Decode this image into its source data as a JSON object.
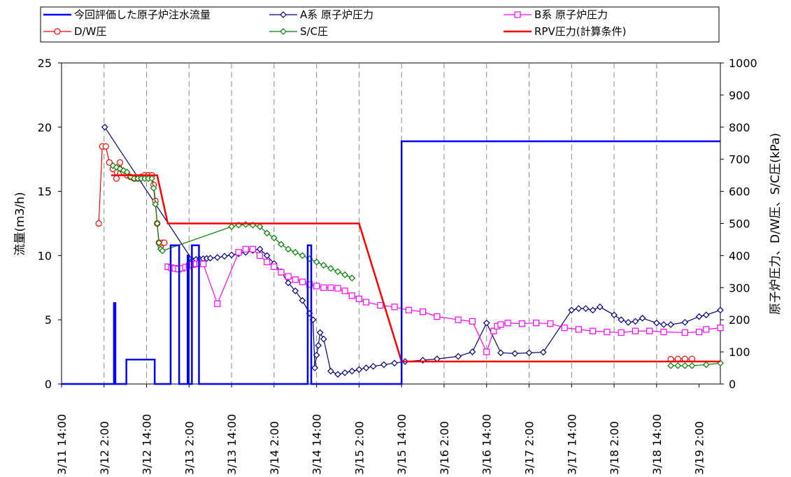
{
  "chart_data": {
    "type": "line",
    "title": "",
    "ylabel_left": "流量(m3/h)",
    "ylabel_right": "原子炉圧力、D/W圧、S/C圧(kPa)",
    "ylim_left": [
      0,
      25
    ],
    "ylim_right": [
      0,
      1000
    ],
    "yticks_left": [
      0,
      5,
      10,
      15,
      20,
      25
    ],
    "yticks_right": [
      0,
      100,
      200,
      300,
      400,
      500,
      600,
      700,
      800,
      900,
      1000
    ],
    "x_unit": "hours",
    "x_tick_labels": [
      "3/11 14:00",
      "3/12 2:00",
      "3/12 14:00",
      "3/13 2:00",
      "3/13 14:00",
      "3/14 2:00",
      "3/14 14:00",
      "3/15 2:00",
      "3/15 14:00",
      "3/16 2:00",
      "3/16 14:00",
      "3/17 2:00",
      "3/17 14:00",
      "3/18 2:00",
      "3/18 14:00",
      "3/19 2:00"
    ],
    "grid": true,
    "legend_position": "top",
    "series": [
      {
        "name": "今回評価した原子炉注水流量",
        "axis": "left",
        "color": "#0000ff",
        "marker": "none",
        "x": [
          0,
          14.8,
          14.8,
          15.2,
          15.2,
          18.3,
          18.3,
          26.3,
          26.3,
          30.8,
          30.8,
          33.2,
          33.2,
          35.6,
          35.6,
          35.9,
          35.9,
          36.8,
          36.8,
          38.8,
          38.8,
          69.5,
          69.5,
          70.5,
          70.5,
          91.2,
          91.2,
          96,
          96,
          186
        ],
        "y": [
          0,
          0,
          6.3,
          6.3,
          0,
          0,
          1.9,
          1.9,
          0,
          0,
          10.8,
          10.8,
          0,
          0,
          10,
          10,
          0,
          0,
          10.8,
          10.8,
          0,
          0,
          10.8,
          10.8,
          0,
          0,
          0,
          0,
          18.9,
          18.9
        ]
      },
      {
        "name": "A系 原子炉圧力",
        "axis": "right",
        "color": "#000080",
        "marker": "diamond-open",
        "x": [
          12.2,
          37,
          38,
          39,
          40,
          41,
          42,
          44,
          46,
          48,
          50,
          52,
          54,
          56,
          58,
          60,
          62,
          64,
          66,
          68,
          70,
          71,
          71.5,
          72,
          72.5,
          73,
          74,
          76,
          78,
          80,
          82,
          84,
          86,
          88,
          91,
          94,
          97,
          102,
          106,
          112,
          116,
          120,
          124,
          128,
          132,
          136,
          144,
          146,
          148,
          150,
          152,
          156,
          158,
          160,
          162,
          164,
          168,
          170,
          172,
          176,
          180,
          182,
          186
        ],
        "y": [
          800,
          385,
          388,
          389,
          390,
          391,
          392,
          394,
          398,
          402,
          406,
          410,
          416,
          420,
          400,
          375,
          350,
          315,
          290,
          260,
          220,
          200,
          50,
          90,
          120,
          160,
          140,
          40,
          30,
          35,
          40,
          45,
          50,
          55,
          60,
          65,
          70,
          74,
          78,
          86,
          100,
          190,
          97,
          95,
          97,
          99,
          230,
          235,
          235,
          230,
          240,
          215,
          200,
          192,
          195,
          205,
          190,
          185,
          185,
          192,
          210,
          215,
          230
        ]
      },
      {
        "name": "B系 原子炉圧力",
        "axis": "right",
        "color": "#ff00ff",
        "marker": "square-open",
        "x": [
          30,
          31,
          32,
          33,
          34,
          35,
          36,
          37,
          38,
          39,
          40,
          44,
          50,
          52,
          54,
          56,
          58,
          60,
          62,
          64,
          66,
          68,
          70,
          72,
          74,
          76,
          78,
          80,
          82,
          84,
          86,
          90,
          94,
          98,
          102,
          106,
          112,
          116,
          120,
          122,
          123,
          124,
          126,
          130,
          134,
          138,
          142,
          146,
          150,
          154,
          158,
          162,
          166,
          170,
          176,
          180,
          182,
          186
        ],
        "y": [
          365,
          362,
          360,
          358,
          360,
          364,
          368,
          372,
          374,
          375,
          374,
          250,
          410,
          420,
          420,
          400,
          380,
          365,
          348,
          335,
          325,
          318,
          310,
          305,
          300,
          300,
          298,
          290,
          275,
          265,
          255,
          245,
          240,
          230,
          225,
          210,
          200,
          195,
          100,
          165,
          180,
          185,
          190,
          188,
          190,
          188,
          175,
          170,
          165,
          162,
          160,
          165,
          165,
          162,
          160,
          162,
          170,
          175
        ]
      },
      {
        "name": "D/W圧",
        "axis": "right",
        "color": "#ff0000",
        "marker": "circle-open",
        "x": [
          10.5,
          11.5,
          12.5,
          13.5,
          14.5,
          15.5,
          16.5,
          17.5,
          18.5,
          19.5,
          20.5,
          21.5,
          22.5,
          23.5,
          24.5,
          25.5,
          26,
          26.5,
          27,
          27.5,
          28,
          28.5,
          29
        ],
        "y": [
          500,
          740,
          740,
          690,
          670,
          640,
          690,
          660,
          650,
          645,
          640,
          640,
          645,
          650,
          650,
          650,
          620,
          570,
          500,
          440,
          430,
          440,
          440
        ],
        "x2": [
          172,
          174,
          176,
          178
        ],
        "y2": [
          77,
          78,
          78,
          78
        ]
      },
      {
        "name": "S/C圧",
        "axis": "right",
        "color": "#008000",
        "marker": "diamond-open",
        "x": [
          14.5,
          15.5,
          16.5,
          17.5,
          18.5,
          19.5,
          20.5,
          21.5,
          22.5,
          23.5,
          24.5,
          25.5,
          26,
          26.5,
          27,
          27.5,
          28,
          28.5,
          48,
          50,
          52,
          54,
          56,
          58,
          60,
          62,
          64,
          66,
          68,
          70,
          72,
          74,
          76,
          78,
          80,
          82
        ],
        "y": [
          680,
          675,
          670,
          665,
          660,
          645,
          640,
          640,
          640,
          640,
          640,
          640,
          610,
          560,
          500,
          440,
          420,
          415,
          490,
          495,
          497,
          495,
          490,
          470,
          455,
          435,
          420,
          410,
          400,
          390,
          380,
          370,
          360,
          350,
          340,
          330
        ],
        "x2": [
          172,
          174,
          176,
          178,
          182,
          186
        ],
        "y2": [
          57,
          57,
          57,
          57,
          60,
          65
        ]
      },
      {
        "name": "RPV圧力(計算条件)",
        "axis": "right",
        "color": "#ff0000",
        "marker": "none",
        "x": [
          14,
          25,
          27,
          30,
          48,
          58,
          60,
          70,
          72,
          82,
          84,
          96,
          98,
          186
        ],
        "y": [
          650,
          650,
          650,
          500,
          500,
          500,
          500,
          500,
          500,
          500,
          500,
          70,
          70,
          70
        ]
      }
    ]
  }
}
